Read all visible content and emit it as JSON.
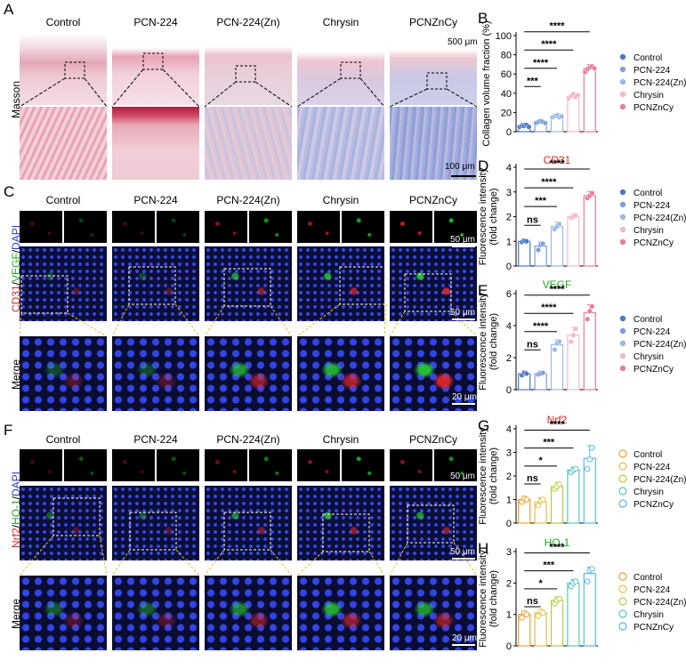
{
  "panels": {
    "A": "A",
    "B": "B",
    "C": "C",
    "D": "D",
    "E": "E",
    "F": "F",
    "G": "G",
    "H": "H"
  },
  "groups": [
    "Control",
    "PCN-224",
    "PCN-224(Zn)",
    "Chrysin",
    "PCNZnCy"
  ],
  "row_labels": {
    "masson": "Masson",
    "cd31": "CD31",
    "slash1": "/",
    "vegf": "VEGF",
    "slash2": "/",
    "dapi": "DAPI",
    "nrf2": "Nrf2",
    "ho1": "HO-1",
    "merge": "Merge"
  },
  "scalebars": {
    "a_top": "500 μm",
    "a_bot": "100 μm",
    "um50": "50 μm",
    "um20": "20 μm"
  },
  "colors": {
    "cd31": "#e0261f",
    "vegf": "#1faa22",
    "nrf2": "#e0261f",
    "ho1": "#1faa22",
    "dapi": "#2b3bd6"
  },
  "chart_data": [
    {
      "type": "bar",
      "panel": "B",
      "title": "",
      "ylabel": "Collagen volume fraction (%)",
      "ylim": [
        0,
        100
      ],
      "yticks": [
        0,
        20,
        40,
        60,
        80,
        100
      ],
      "categories": [
        "Control",
        "PCN-224",
        "PCN-224(Zn)",
        "Chrysin",
        "PCNZnCy"
      ],
      "values": [
        6,
        10,
        16,
        37,
        66
      ],
      "points": [
        [
          5,
          6,
          6,
          7,
          5
        ],
        [
          9,
          10,
          11,
          10,
          9
        ],
        [
          15,
          16,
          17,
          15,
          16
        ],
        [
          35,
          37,
          39,
          36,
          38
        ],
        [
          62,
          65,
          67,
          68,
          66
        ]
      ],
      "colors": [
        "#4a78c8",
        "#7d9ee0",
        "#9ab8ea",
        "#f4b8c8",
        "#ea7e98"
      ],
      "hollow": false,
      "ptcolors": [
        "#4a78c8",
        "#7d9ee0",
        "#9ab8ea",
        "#f4b8c8",
        "#ea7e98"
      ],
      "significance": [
        "***",
        "****",
        "****",
        "****"
      ]
    },
    {
      "type": "bar",
      "panel": "D",
      "title": "CD31",
      "ylabel": "Fluorescence intensity (fold change)",
      "ylim": [
        0,
        4
      ],
      "yticks": [
        0,
        1,
        2,
        3,
        4
      ],
      "categories": [
        "Control",
        "PCN-224",
        "PCN-224(Zn)",
        "Chrysin",
        "PCNZnCy"
      ],
      "values": [
        1.0,
        0.8,
        1.6,
        2.0,
        2.85
      ],
      "points": [
        [
          0.97,
          1.02,
          1.0
        ],
        [
          0.65,
          0.85,
          0.9
        ],
        [
          1.5,
          1.6,
          1.7
        ],
        [
          1.95,
          2.0,
          2.05
        ],
        [
          2.75,
          2.85,
          2.95
        ]
      ],
      "colors": [
        "#4a78c8",
        "#7d9ee0",
        "#9ab8ea",
        "#f4b8c8",
        "#ea7e98"
      ],
      "hollow": false,
      "ptcolors": [
        "#4a78c8",
        "#7d9ee0",
        "#9ab8ea",
        "#f4b8c8",
        "#ea7e98"
      ],
      "significance": [
        "ns",
        "***",
        "****",
        "****"
      ]
    },
    {
      "type": "bar",
      "panel": "E",
      "title": "VEGF",
      "ylabel": "Fluorescence intensity (fold change)",
      "ylim": [
        0,
        6
      ],
      "yticks": [
        0,
        2,
        4,
        6
      ],
      "categories": [
        "Control",
        "PCN-224",
        "PCN-224(Zn)",
        "Chrysin",
        "PCNZnCy"
      ],
      "values": [
        1.0,
        1.0,
        2.8,
        3.4,
        4.8
      ],
      "points": [
        [
          0.9,
          1.05,
          1.0
        ],
        [
          0.95,
          1.0,
          1.05
        ],
        [
          2.5,
          2.9,
          3.0
        ],
        [
          3.0,
          3.4,
          3.8
        ],
        [
          4.4,
          4.9,
          5.2
        ]
      ],
      "colors": [
        "#4a78c8",
        "#7d9ee0",
        "#9ab8ea",
        "#f4b8c8",
        "#ea7e98"
      ],
      "hollow": false,
      "ptcolors": [
        "#4a78c8",
        "#7d9ee0",
        "#9ab8ea",
        "#f4b8c8",
        "#ea7e98"
      ],
      "significance": [
        "ns",
        "****",
        "****",
        "****"
      ]
    },
    {
      "type": "bar",
      "panel": "G",
      "title": "Nrf2",
      "ylabel": "Fluorescence intensity (fold change)",
      "ylim": [
        0,
        4
      ],
      "yticks": [
        0,
        1,
        2,
        3,
        4
      ],
      "categories": [
        "Control",
        "PCN-224",
        "PCN-224(Zn)",
        "Chrysin",
        "PCNZnCy"
      ],
      "values": [
        1.0,
        0.9,
        1.55,
        2.25,
        2.75
      ],
      "points": [
        [
          0.9,
          1.05,
          1.0
        ],
        [
          0.75,
          0.95,
          1.0
        ],
        [
          1.45,
          1.55,
          1.65
        ],
        [
          2.15,
          2.25,
          2.3
        ],
        [
          2.3,
          2.7,
          3.2
        ]
      ],
      "colors": [
        "#f0a030",
        "#e8c040",
        "#b8cc40",
        "#58c8b8",
        "#58b8f0"
      ],
      "hollow": true,
      "ptcolors": [
        "#f0a030",
        "#e8c040",
        "#b8cc40",
        "#58c8b8",
        "#58b8f0"
      ],
      "significance": [
        "ns",
        "*",
        "***",
        "****"
      ]
    },
    {
      "type": "bar",
      "panel": "H",
      "title": "HO-1",
      "ylabel": "Fluorescence intensity (fold change)",
      "ylim": [
        0,
        3
      ],
      "yticks": [
        0,
        1,
        2,
        3
      ],
      "categories": [
        "Control",
        "PCN-224",
        "PCN-224(Zn)",
        "Chrysin",
        "PCNZnCy"
      ],
      "values": [
        1.0,
        1.05,
        1.45,
        2.0,
        2.3
      ],
      "points": [
        [
          0.9,
          1.05,
          1.0
        ],
        [
          0.95,
          1.1,
          1.05
        ],
        [
          1.35,
          1.45,
          1.5
        ],
        [
          1.9,
          2.0,
          2.05
        ],
        [
          2.05,
          2.4,
          2.45
        ]
      ],
      "colors": [
        "#f0a030",
        "#e8c040",
        "#b8cc40",
        "#58c8b8",
        "#58b8f0"
      ],
      "hollow": true,
      "ptcolors": [
        "#f0a030",
        "#e8c040",
        "#b8cc40",
        "#58c8b8",
        "#58b8f0"
      ],
      "significance": [
        "ns",
        "*",
        "***",
        "****"
      ]
    }
  ]
}
